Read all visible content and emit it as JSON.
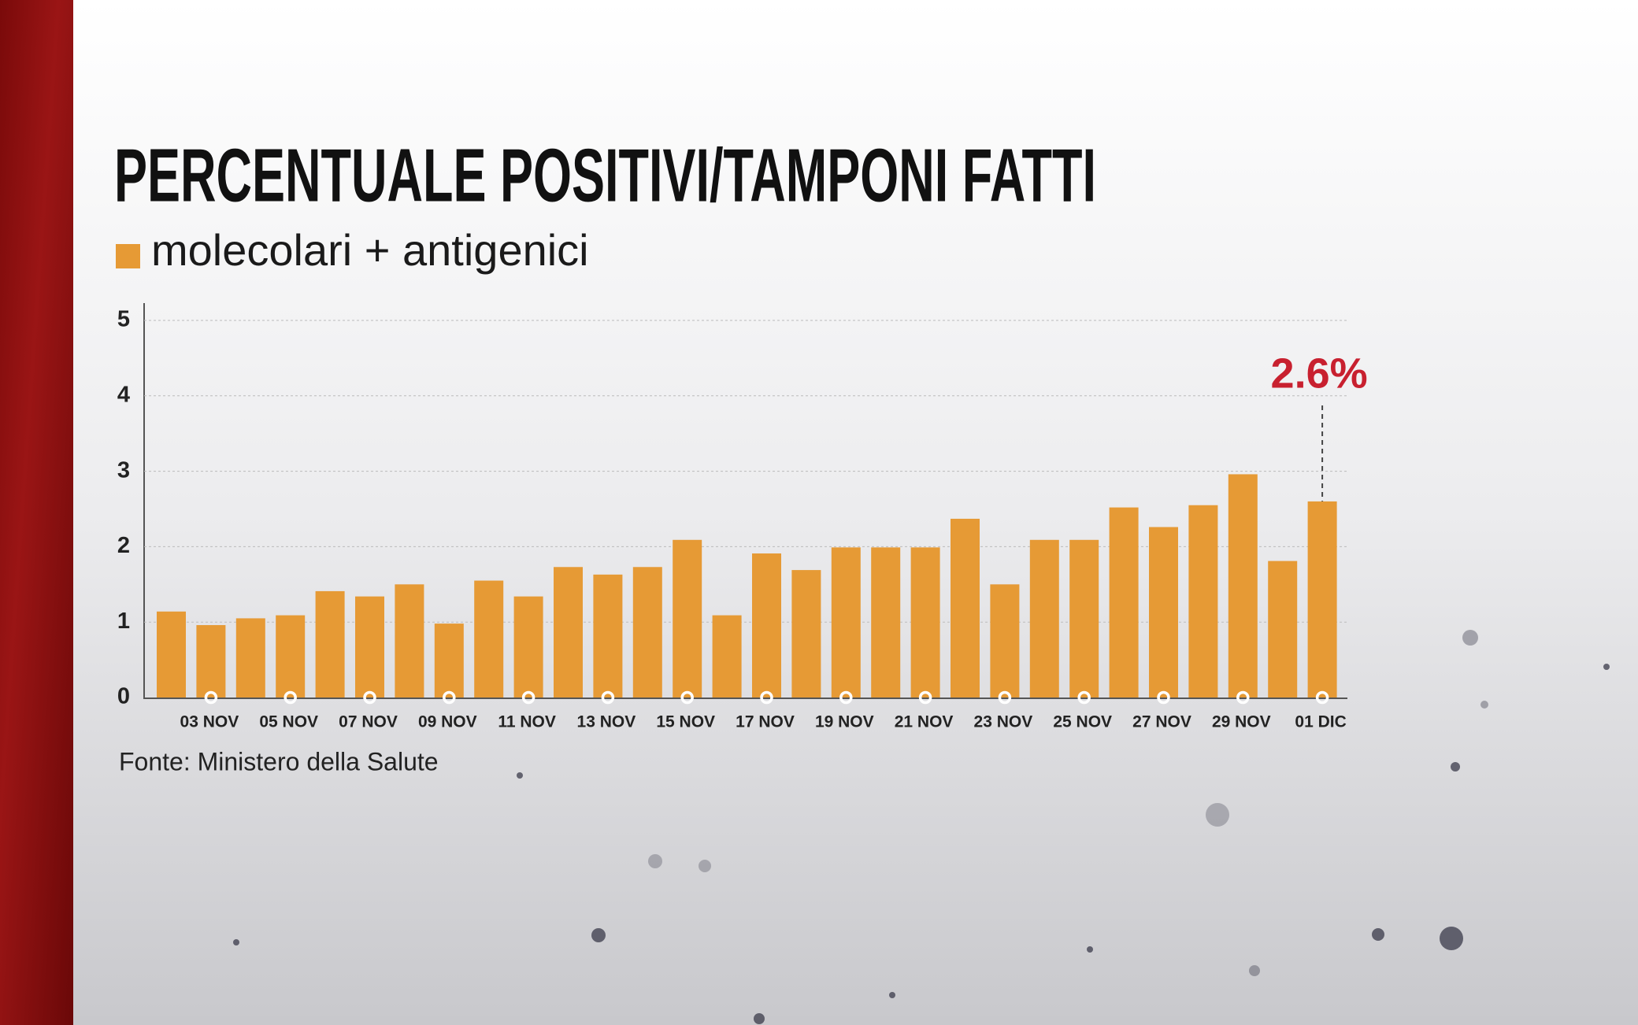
{
  "chart_data": {
    "type": "bar",
    "title": "PERCENTUALE POSITIVI/TAMPONI FATTI",
    "source": "Fonte: Ministero della Salute",
    "categories": [
      null,
      "03 NOV",
      null,
      "05 NOV",
      null,
      "07 NOV",
      null,
      "09 NOV",
      null,
      "11 NOV",
      null,
      "13 NOV",
      null,
      "15 NOV",
      null,
      "17 NOV",
      null,
      "19 NOV",
      null,
      "21 NOV",
      null,
      "23 NOV",
      null,
      "25 NOV",
      null,
      "27 NOV",
      null,
      "29 NOV",
      null,
      "01 DIC"
    ],
    "series": [
      {
        "name": "molecolari + antigenici",
        "color": "#e69a35",
        "values": [
          1.14,
          0.96,
          1.05,
          1.09,
          1.41,
          1.34,
          1.5,
          0.98,
          1.55,
          1.34,
          1.73,
          1.63,
          1.73,
          2.09,
          1.09,
          1.91,
          1.69,
          1.99,
          1.99,
          1.99,
          2.37,
          1.5,
          2.09,
          2.09,
          2.52,
          2.26,
          2.55,
          2.96,
          1.81,
          2.6
        ],
        "value_labels": [
          null,
          null,
          null,
          null,
          null,
          null,
          null,
          null,
          null,
          null,
          null,
          null,
          null,
          null,
          null,
          null,
          null,
          null,
          null,
          null,
          null,
          null,
          null,
          null,
          null,
          null,
          null,
          null,
          null,
          "2.6%"
        ],
        "value_label_color": "#c8202f"
      }
    ],
    "ylim": [
      0,
      5
    ],
    "yticks": [
      0,
      1,
      2,
      3,
      4,
      5
    ],
    "grid": true
  }
}
